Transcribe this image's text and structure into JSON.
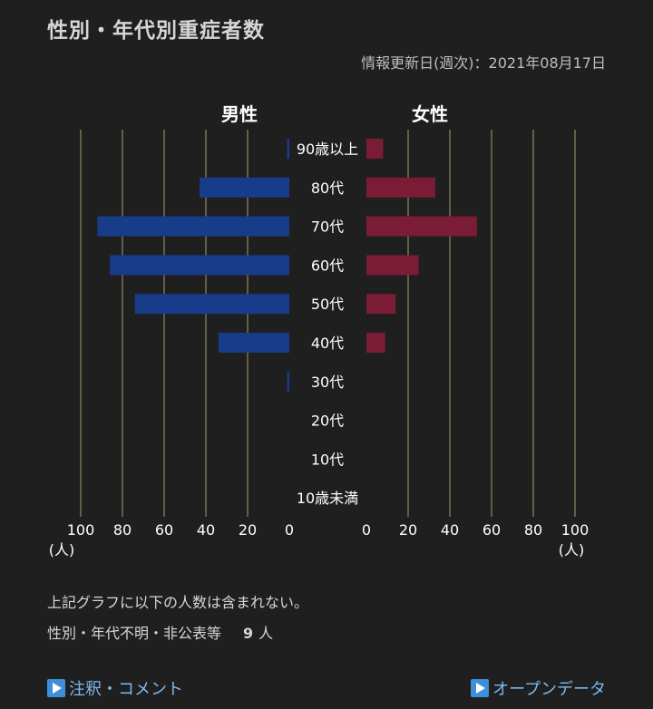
{
  "page": {
    "title": "性別・年代別重症者数",
    "updated": "情報更新日(週次)：2021年08月17日",
    "note_line1": "上記グラフに以下の人数は含まれない。",
    "note_line2_label": "性別・年代不明・非公表等",
    "note_line2_count": "9",
    "note_line2_unit": "人",
    "link_left": "注釈・コメント",
    "link_right": "オープンデータ",
    "link_icon": "play-icon"
  },
  "chart_data": {
    "type": "bar",
    "orientation": "horizontal-population-pyramid",
    "categories": [
      "90歳以上",
      "80代",
      "70代",
      "60代",
      "50代",
      "40代",
      "30代",
      "20代",
      "10代",
      "10歳未満"
    ],
    "series": [
      {
        "name": "男性",
        "side": "left",
        "color": "#173d8a",
        "values": [
          1,
          43,
          92,
          86,
          74,
          34,
          1,
          0,
          0,
          0
        ]
      },
      {
        "name": "女性",
        "side": "right",
        "color": "#7a1c35",
        "values": [
          8,
          33,
          53,
          25,
          14,
          9,
          0,
          0,
          0,
          0
        ]
      }
    ],
    "xlim": [
      0,
      100
    ],
    "ticks": [
      0,
      20,
      40,
      60,
      80,
      100
    ],
    "unit_label": "(人)",
    "grid": true,
    "grid_color": "#85825e"
  }
}
